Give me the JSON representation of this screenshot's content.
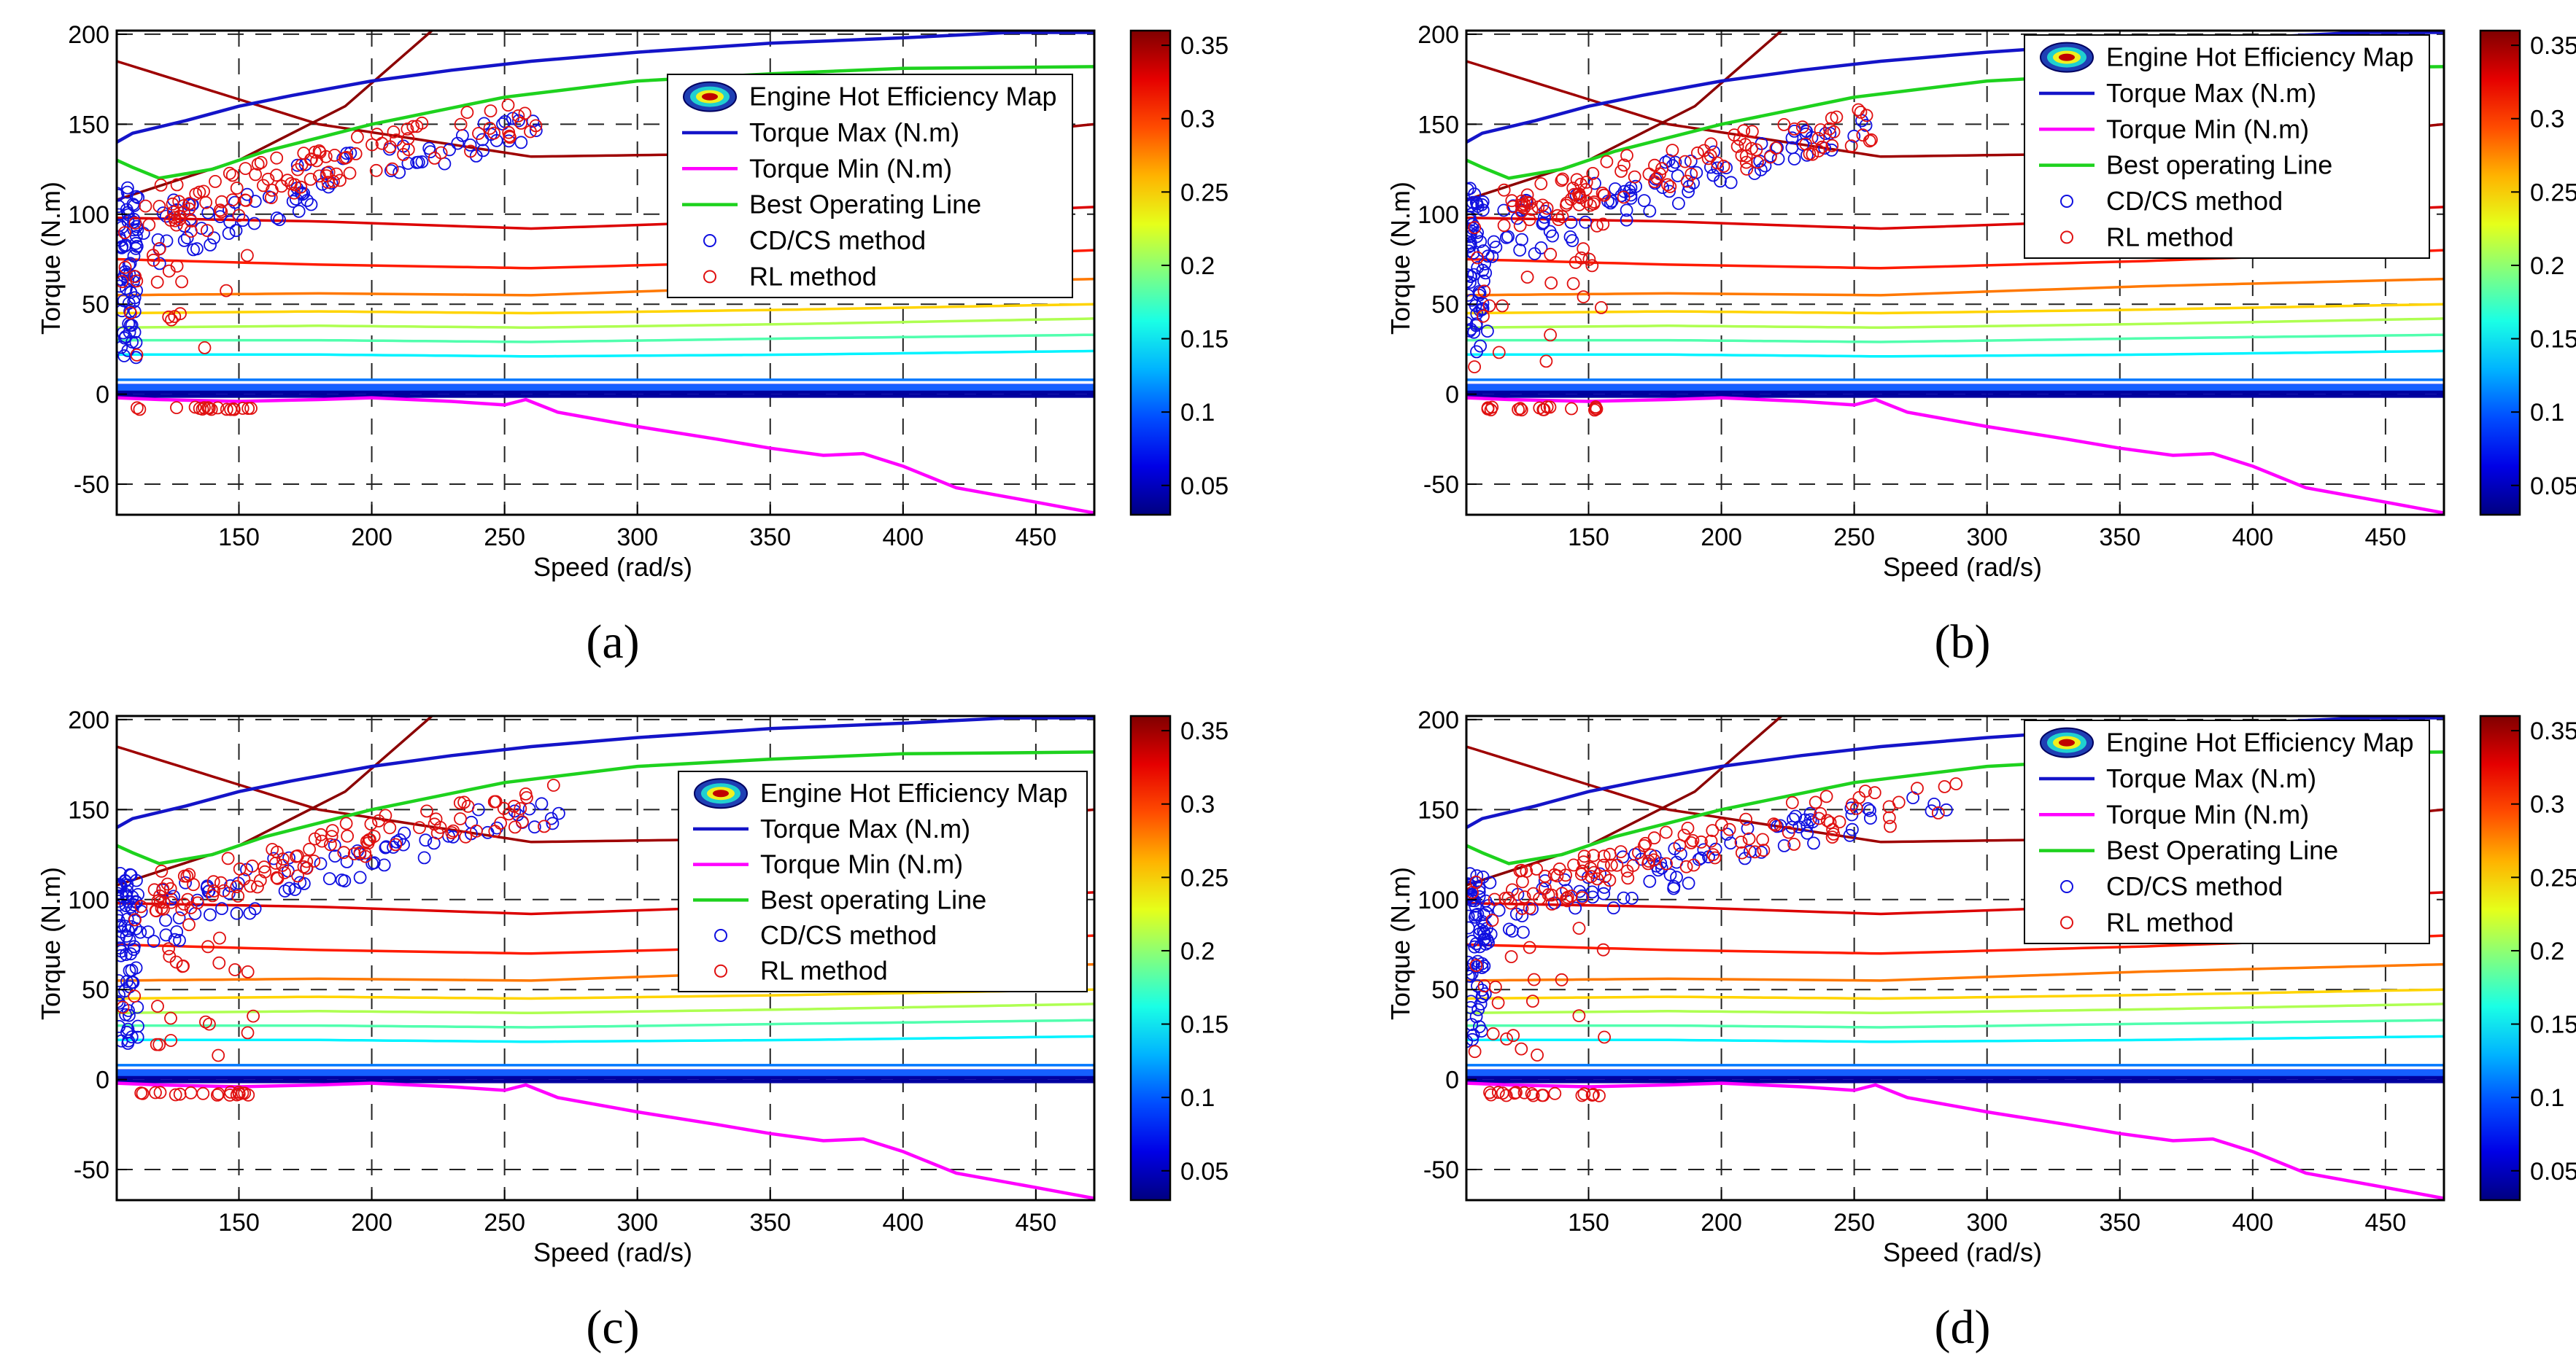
{
  "figure": {
    "colors": {
      "torque_max": "#1414c8",
      "torque_min": "#ff00ff",
      "best_line": "#1ed21e",
      "cdcs": "#1010e0",
      "rl": "#e01010",
      "grid": "#222222"
    },
    "colorbar": {
      "ticks": [
        0.05,
        0.1,
        0.15,
        0.2,
        0.25,
        0.3,
        0.35
      ],
      "tick_labels": [
        "0.05",
        "0.1",
        "0.15",
        "0.2",
        "0.25",
        "0.3",
        "0.35"
      ],
      "range": [
        0.03,
        0.36
      ]
    }
  },
  "chart_data": [
    {
      "type": "scatter",
      "caption": "(a)",
      "xlabel": "Speed (rad/s)",
      "ylabel": "Torque (N.m)",
      "xlim": [
        104,
        472
      ],
      "ylim": [
        -67,
        202
      ],
      "xticks": [
        150,
        200,
        250,
        300,
        350,
        400,
        450
      ],
      "xtick_labels": [
        "150",
        "200",
        "250",
        "300",
        "350",
        "400",
        "450"
      ],
      "yticks": [
        -50,
        0,
        50,
        100,
        150,
        200
      ],
      "ytick_labels": [
        "-50",
        "0",
        "50",
        "100",
        "150",
        "200"
      ],
      "legend": {
        "placement": "top-right",
        "entries": [
          "Engine Hot Efficiency Map",
          "Torque Max (N.m)",
          "Torque Min (N.m)",
          "Best Operating Line",
          "CD/CS method",
          "RL method"
        ]
      },
      "colorbar_labels": [
        "0.05",
        "0.1",
        "0.15",
        "0.2",
        "0.25",
        "0.3",
        "0.35"
      ],
      "series": [
        {
          "name": "Torque Max (N.m)",
          "x": [
            104,
            110,
            130,
            150,
            170,
            200,
            230,
            260,
            300,
            350,
            400,
            440,
            472
          ],
          "y": [
            140,
            145,
            152,
            160,
            166,
            174,
            180,
            185,
            190,
            195,
            198,
            201,
            201
          ]
        },
        {
          "name": "Torque Min (N.m)",
          "x": [
            104,
            120,
            150,
            180,
            200,
            230,
            250,
            258,
            270,
            300,
            330,
            350,
            370,
            385,
            400,
            420,
            450,
            472
          ],
          "y": [
            -2,
            -3,
            -4,
            -3,
            -2,
            -4,
            -6,
            -3,
            -10,
            -18,
            -25,
            -30,
            -34,
            -33,
            -40,
            -52,
            -60,
            -66
          ]
        },
        {
          "name": "Best Operating Line",
          "x": [
            104,
            110,
            120,
            140,
            160,
            200,
            250,
            300,
            350,
            400,
            472
          ],
          "y": [
            130,
            126,
            120,
            125,
            135,
            150,
            165,
            174,
            178,
            181,
            182
          ]
        },
        {
          "name": "CD/CS method",
          "count": 150
        },
        {
          "name": "RL method",
          "count": 150
        }
      ]
    },
    {
      "type": "scatter",
      "caption": "(b)",
      "xlabel": "Speed (rad/s)",
      "ylabel": "Torque (N.m)",
      "xlim": [
        104,
        472
      ],
      "ylim": [
        -67,
        202
      ],
      "xticks": [
        150,
        200,
        250,
        300,
        350,
        400,
        450
      ],
      "xtick_labels": [
        "150",
        "200",
        "250",
        "300",
        "350",
        "400",
        "450"
      ],
      "yticks": [
        -50,
        0,
        50,
        100,
        150,
        200
      ],
      "ytick_labels": [
        "-50",
        "0",
        "50",
        "100",
        "150",
        "200"
      ],
      "legend": {
        "placement": "top-right",
        "entries": [
          "Engine Hot Efficiency Map",
          "Torque Max (N.m)",
          "Torque Min (N.m)",
          "Best operating Line",
          "CD/CS method",
          "RL method"
        ]
      },
      "colorbar_labels": [
        "0.05",
        "0.1",
        "0.15",
        "0.2",
        "0.25",
        "0.3",
        "0.35"
      ],
      "series": [
        {
          "name": "Torque Max (N.m)",
          "x": [
            104,
            110,
            130,
            150,
            170,
            200,
            230,
            260,
            300,
            350,
            400,
            440,
            472
          ],
          "y": [
            140,
            145,
            152,
            160,
            166,
            174,
            180,
            185,
            190,
            195,
            198,
            201,
            201
          ]
        },
        {
          "name": "Torque Min (N.m)",
          "x": [
            104,
            120,
            150,
            180,
            200,
            230,
            250,
            258,
            270,
            300,
            330,
            350,
            370,
            385,
            400,
            420,
            450,
            472
          ],
          "y": [
            -2,
            -3,
            -4,
            -3,
            -2,
            -4,
            -6,
            -3,
            -10,
            -18,
            -25,
            -30,
            -34,
            -33,
            -40,
            -52,
            -60,
            -66
          ]
        },
        {
          "name": "Best operating Line",
          "x": [
            104,
            110,
            120,
            140,
            160,
            200,
            250,
            300,
            350,
            400,
            472
          ],
          "y": [
            130,
            126,
            120,
            125,
            135,
            150,
            165,
            174,
            178,
            181,
            182
          ]
        },
        {
          "name": "CD/CS method",
          "count": 150
        },
        {
          "name": "RL method",
          "count": 150
        }
      ]
    },
    {
      "type": "scatter",
      "caption": "(c)",
      "xlabel": "Speed (rad/s)",
      "ylabel": "Torque (N.m)",
      "xlim": [
        104,
        472
      ],
      "ylim": [
        -67,
        202
      ],
      "xticks": [
        150,
        200,
        250,
        300,
        350,
        400,
        450
      ],
      "xtick_labels": [
        "150",
        "200",
        "250",
        "300",
        "350",
        "400",
        "450"
      ],
      "yticks": [
        -50,
        0,
        50,
        100,
        150,
        200
      ],
      "ytick_labels": [
        "-50",
        "0",
        "50",
        "100",
        "150",
        "200"
      ],
      "legend": {
        "placement": "right",
        "entries": [
          "Engine Hot Efficiency Map",
          "Torque Max (N.m)",
          "Torque Min (N.m)",
          "Best operating Line",
          "CD/CS method",
          "RL method"
        ]
      },
      "colorbar_labels": [
        "0.05",
        "0.1",
        "0.15",
        "0.2",
        "0.25",
        "0.3",
        "0.35"
      ],
      "series": [
        {
          "name": "Torque Max (N.m)",
          "x": [
            104,
            110,
            130,
            150,
            170,
            200,
            230,
            260,
            300,
            350,
            400,
            440,
            472
          ],
          "y": [
            140,
            145,
            152,
            160,
            166,
            174,
            180,
            185,
            190,
            195,
            198,
            201,
            201
          ]
        },
        {
          "name": "Torque Min (N.m)",
          "x": [
            104,
            120,
            150,
            180,
            200,
            230,
            250,
            258,
            270,
            300,
            330,
            350,
            370,
            385,
            400,
            420,
            450,
            472
          ],
          "y": [
            -2,
            -3,
            -4,
            -3,
            -2,
            -4,
            -6,
            -3,
            -10,
            -18,
            -25,
            -30,
            -34,
            -33,
            -40,
            -52,
            -60,
            -66
          ]
        },
        {
          "name": "Best operating Line",
          "x": [
            104,
            110,
            120,
            140,
            160,
            200,
            250,
            300,
            350,
            400,
            472
          ],
          "y": [
            130,
            126,
            120,
            125,
            135,
            150,
            165,
            174,
            178,
            181,
            182
          ]
        },
        {
          "name": "CD/CS method",
          "count": 150
        },
        {
          "name": "RL method",
          "count": 150
        }
      ]
    },
    {
      "type": "scatter",
      "caption": "(d)",
      "xlabel": "Speed (rad/s)",
      "ylabel": "Torque (N.m)",
      "xlim": [
        104,
        472
      ],
      "ylim": [
        -67,
        202
      ],
      "xticks": [
        150,
        200,
        250,
        300,
        350,
        400,
        450
      ],
      "xtick_labels": [
        "150",
        "200",
        "250",
        "300",
        "350",
        "400",
        "450"
      ],
      "yticks": [
        -50,
        0,
        50,
        100,
        150,
        200
      ],
      "ytick_labels": [
        "-50",
        "0",
        "50",
        "100",
        "150",
        "200"
      ],
      "legend": {
        "placement": "top-right",
        "entries": [
          "Engine Hot Efficiency Map",
          "Torque Max (N.m)",
          "Torque Min (N.m)",
          "Best Operating Line",
          "CD/CS method",
          "RL method"
        ]
      },
      "colorbar_labels": [
        "0.05",
        "0.1",
        "0.15",
        "0.2",
        "0.25",
        "0.3",
        "0.35"
      ],
      "series": [
        {
          "name": "Torque Max (N.m)",
          "x": [
            104,
            110,
            130,
            150,
            170,
            200,
            230,
            260,
            300,
            350,
            400,
            440,
            472
          ],
          "y": [
            140,
            145,
            152,
            160,
            166,
            174,
            180,
            185,
            190,
            195,
            198,
            201,
            201
          ]
        },
        {
          "name": "Torque Min (N.m)",
          "x": [
            104,
            120,
            150,
            180,
            200,
            230,
            250,
            258,
            270,
            300,
            330,
            350,
            370,
            385,
            400,
            420,
            450,
            472
          ],
          "y": [
            -2,
            -3,
            -4,
            -3,
            -2,
            -4,
            -6,
            -3,
            -10,
            -18,
            -25,
            -30,
            -34,
            -33,
            -40,
            -52,
            -60,
            -66
          ]
        },
        {
          "name": "Best Operating Line",
          "x": [
            104,
            110,
            120,
            140,
            160,
            200,
            250,
            300,
            350,
            400,
            472
          ],
          "y": [
            130,
            126,
            120,
            125,
            135,
            150,
            165,
            174,
            178,
            181,
            182
          ]
        },
        {
          "name": "CD/CS method",
          "count": 150
        },
        {
          "name": "RL method",
          "count": 150
        }
      ]
    }
  ]
}
